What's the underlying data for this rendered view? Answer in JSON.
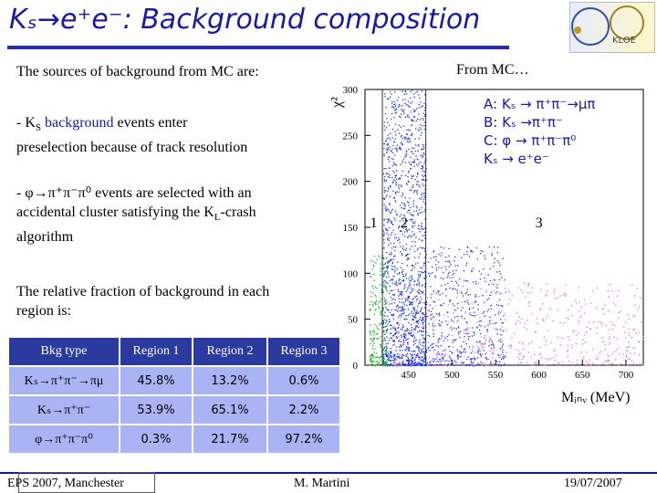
{
  "title": "Kₛ→e⁺e⁻: Background composition",
  "logo_text": "KLOE",
  "intro": "The sources of background from MC are:",
  "bullet1_prefix": "- K",
  "bullet1_sub": "S",
  "bullet1_hl": " background",
  "bullet1_rest": " events enter preselection because of track resolution",
  "bullet2_prefix": "- φ→π⁺π⁻π⁰",
  "bullet2_rest": " events are selected with an accidental cluster satisfying the K",
  "bullet2_sub": "L",
  "bullet2_end": "-crash algorithm",
  "relative": "The relative fraction of background in each region is:",
  "from_mc": "From MC…",
  "legend": [
    "A: Kₛ → π⁺π⁻→μπ",
    "B: Kₛ →π⁺π⁻",
    "C: φ → π⁺π⁻π⁰",
    "Kₛ → e⁺e⁻"
  ],
  "table": {
    "headers": [
      "Bkg type",
      "Region 1",
      "Region 2",
      "Region 3"
    ],
    "rows": [
      [
        "Kₛ→π⁺π⁻→πμ",
        "45.8%",
        "13.2%",
        "0.6%"
      ],
      [
        "Kₛ→π⁺π⁻",
        "53.9%",
        "65.1%",
        "2.2%"
      ],
      [
        "φ→π⁺π⁻π⁰",
        "0.3%",
        "21.7%",
        "97.2%"
      ]
    ]
  },
  "footer": {
    "left": "EPS 2007, Manchester",
    "center": "M. Martini",
    "right": "19/07/2007"
  },
  "chart_data": {
    "type": "scatter",
    "xlabel": "Mᵢₙᵥ (MeV)",
    "ylabel": "χ²",
    "xlim": [
      400,
      720
    ],
    "ylim": [
      0,
      300
    ],
    "xticks": [
      450,
      500,
      550,
      600,
      650,
      700
    ],
    "yticks": [
      0,
      50,
      100,
      150,
      200,
      250,
      300
    ],
    "region_labels": [
      "1",
      "2",
      "3"
    ],
    "region_boundaries_x": [
      420,
      470
    ],
    "series": [
      {
        "color": "#1a3ad8",
        "x_range": [
          420,
          470
        ],
        "y_range": [
          0,
          300
        ],
        "n": 1400
      },
      {
        "color": "#1a3ad8",
        "x_range": [
          470,
          560
        ],
        "y_range": [
          0,
          130
        ],
        "n": 500
      },
      {
        "color": "#20b020",
        "x_range": [
          405,
          425
        ],
        "y_range": [
          0,
          120
        ],
        "n": 220
      },
      {
        "color": "#e070e0",
        "x_range": [
          430,
          720
        ],
        "y_range": [
          0,
          90
        ],
        "n": 600
      }
    ]
  }
}
